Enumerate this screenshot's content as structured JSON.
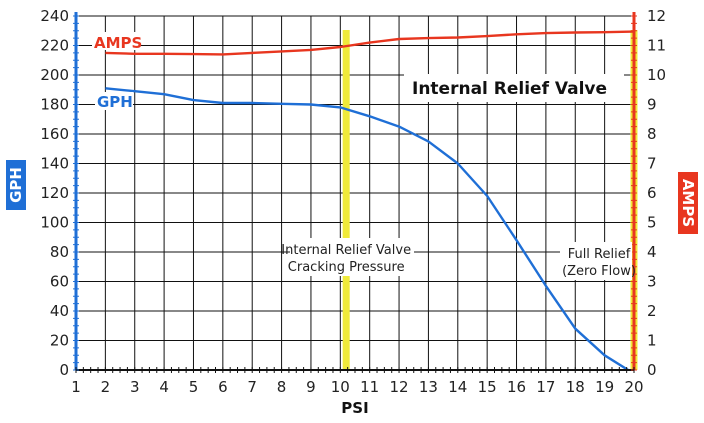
{
  "chart_data": {
    "type": "line",
    "title": "Internal Relief Valve",
    "xlabel": "PSI",
    "ylabel_left": "GPH",
    "ylabel_right": "AMPS",
    "x_ticks": [
      "1",
      "2",
      "3",
      "4",
      "5",
      "6",
      "7",
      "8",
      "9",
      "10",
      "11",
      "12",
      "13",
      "14",
      "15",
      "16",
      "17",
      "18",
      "19",
      "20"
    ],
    "y_left_ticks": [
      "0",
      "20",
      "40",
      "60",
      "80",
      "100",
      "120",
      "140",
      "160",
      "180",
      "200",
      "220",
      "240"
    ],
    "y_right_ticks": [
      "0",
      "1",
      "2",
      "3",
      "4",
      "5",
      "6",
      "7",
      "8",
      "9",
      "10",
      "11",
      "12"
    ],
    "xlim": [
      1,
      20
    ],
    "ylim_left": [
      0,
      240
    ],
    "ylim_right": [
      0,
      12
    ],
    "grid": true,
    "series": [
      {
        "name": "GPH",
        "axis": "left",
        "color": "#1f6fd6",
        "x": [
          2,
          3,
          4,
          5,
          6,
          7,
          8,
          9,
          10,
          11,
          12,
          13,
          14,
          15,
          16,
          17,
          18,
          19,
          19.8
        ],
        "y": [
          191,
          189,
          187,
          183,
          181,
          181,
          180.5,
          180,
          178,
          172,
          165,
          155,
          140,
          118,
          88,
          57,
          28,
          10,
          0
        ]
      },
      {
        "name": "AMPS",
        "axis": "right",
        "color": "#e8361f",
        "x": [
          2,
          3,
          4,
          5,
          6,
          7,
          8,
          9,
          10,
          11,
          12,
          13,
          14,
          15,
          16,
          17,
          18,
          19,
          20
        ],
        "y": [
          10.75,
          10.72,
          10.72,
          10.71,
          10.7,
          10.75,
          10.8,
          10.85,
          10.95,
          11.1,
          11.22,
          11.25,
          11.27,
          11.32,
          11.38,
          11.42,
          11.44,
          11.45,
          11.47
        ]
      }
    ],
    "markers": [
      {
        "x": 10.2,
        "color": "#f0ea3a",
        "label_lines": [
          "Internal Relief Valve",
          "Cracking Pressure"
        ]
      },
      {
        "x": 20,
        "color": "#f0ea3a",
        "label_lines": [
          "Full Relief",
          "(Zero Flow)"
        ]
      }
    ],
    "left_axis_color": "#1f6fd6",
    "right_axis_color": "#e8361f"
  }
}
